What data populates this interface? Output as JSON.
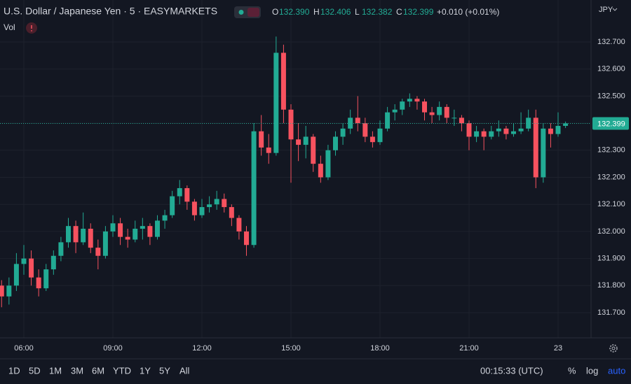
{
  "header": {
    "symbol": "U.S. Dollar / Japanese Yen · 5 · EASYMARKETS",
    "ohlc": [
      {
        "label": "O",
        "value": "132.390"
      },
      {
        "label": "H",
        "value": "132.406"
      },
      {
        "label": "L",
        "value": "132.382"
      },
      {
        "label": "C",
        "value": "132.399"
      }
    ],
    "change": "+0.010 (+0.01%)",
    "volume_label": "Vol",
    "currency": "JPY"
  },
  "chart_data": {
    "type": "candlestick",
    "up_color": "#22ab94",
    "down_color": "#f7525f",
    "grid": true,
    "last_price": 132.399,
    "xlim": [
      5.197,
      25.11
    ],
    "xticks": [
      {
        "value": 6,
        "label": "06:00"
      },
      {
        "value": 9,
        "label": "09:00"
      },
      {
        "value": 12,
        "label": "12:00"
      },
      {
        "value": 15,
        "label": "15:00"
      },
      {
        "value": 18,
        "label": "18:00"
      },
      {
        "value": 21,
        "label": "21:00"
      },
      {
        "value": 24,
        "label": "23"
      }
    ],
    "ylim": [
      131.607,
      132.855
    ],
    "yticks": [
      {
        "value": 131.7,
        "label": "131.700"
      },
      {
        "value": 131.8,
        "label": "131.800"
      },
      {
        "value": 131.9,
        "label": "131.900"
      },
      {
        "value": 132.0,
        "label": "132.000"
      },
      {
        "value": 132.1,
        "label": "132.100"
      },
      {
        "value": 132.2,
        "label": "132.200"
      },
      {
        "value": 132.3,
        "label": "132.300"
      },
      {
        "value": 132.4,
        "label": "132.400"
      },
      {
        "value": 132.5,
        "label": "132.500"
      },
      {
        "value": 132.6,
        "label": "132.600"
      },
      {
        "value": 132.7,
        "label": "132.700"
      }
    ],
    "x": [
      5.25,
      5.5,
      5.75,
      6,
      6.25,
      6.5,
      6.75,
      7,
      7.25,
      7.5,
      7.75,
      8,
      8.25,
      8.5,
      8.75,
      9,
      9.25,
      9.5,
      9.75,
      10,
      10.25,
      10.5,
      10.75,
      11,
      11.25,
      11.5,
      11.75,
      12,
      12.25,
      12.5,
      12.75,
      13,
      13.25,
      13.5,
      13.75,
      14,
      14.25,
      14.5,
      14.75,
      15,
      15.25,
      15.5,
      15.75,
      16,
      16.25,
      16.5,
      16.75,
      17,
      17.25,
      17.5,
      17.75,
      18,
      18.25,
      18.5,
      18.75,
      19,
      19.25,
      19.5,
      19.75,
      20,
      20.25,
      20.5,
      20.75,
      21,
      21.25,
      21.5,
      21.75,
      22,
      22.25,
      22.5,
      22.75,
      23,
      23.25,
      23.5,
      23.75,
      24,
      24.25
    ],
    "ohlc": [
      [
        131.8,
        131.82,
        131.72,
        131.76
      ],
      [
        131.76,
        131.83,
        131.73,
        131.8
      ],
      [
        131.8,
        131.92,
        131.78,
        131.88
      ],
      [
        131.88,
        131.95,
        131.84,
        131.9
      ],
      [
        131.9,
        131.93,
        131.8,
        131.83
      ],
      [
        131.83,
        131.86,
        131.76,
        131.79
      ],
      [
        131.79,
        131.88,
        131.78,
        131.86
      ],
      [
        131.86,
        131.93,
        131.84,
        131.91
      ],
      [
        131.91,
        131.98,
        131.89,
        131.96
      ],
      [
        131.96,
        132.05,
        131.94,
        132.02
      ],
      [
        132.02,
        132.04,
        131.92,
        131.96
      ],
      [
        131.96,
        132.07,
        131.95,
        132.01
      ],
      [
        132.01,
        132.03,
        131.92,
        131.94
      ],
      [
        131.94,
        131.97,
        131.86,
        131.91
      ],
      [
        131.91,
        132.02,
        131.9,
        132.0
      ],
      [
        132.0,
        132.06,
        131.98,
        132.03
      ],
      [
        132.03,
        132.05,
        131.95,
        131.98
      ],
      [
        131.98,
        132.01,
        131.94,
        131.97
      ],
      [
        131.97,
        132.04,
        131.96,
        132.01
      ],
      [
        132.01,
        132.05,
        131.97,
        132.02
      ],
      [
        132.02,
        132.03,
        131.95,
        131.98
      ],
      [
        131.98,
        132.06,
        131.97,
        132.04
      ],
      [
        132.04,
        132.08,
        132.01,
        132.06
      ],
      [
        132.06,
        132.15,
        132.05,
        132.13
      ],
      [
        132.13,
        132.19,
        132.1,
        132.16
      ],
      [
        132.16,
        132.17,
        132.08,
        132.11
      ],
      [
        132.11,
        132.12,
        132.04,
        132.06
      ],
      [
        132.06,
        132.12,
        132.05,
        132.09
      ],
      [
        132.09,
        132.13,
        132.07,
        132.1
      ],
      [
        132.1,
        132.15,
        132.08,
        132.12
      ],
      [
        132.12,
        132.14,
        132.07,
        132.09
      ],
      [
        132.09,
        132.1,
        132.02,
        132.05
      ],
      [
        132.05,
        132.06,
        131.97,
        132.0
      ],
      [
        132.0,
        132.02,
        131.91,
        131.95
      ],
      [
        131.95,
        132.4,
        131.94,
        132.37
      ],
      [
        132.37,
        132.43,
        132.28,
        132.31
      ],
      [
        132.31,
        132.36,
        132.25,
        132.29
      ],
      [
        132.29,
        132.72,
        132.28,
        132.66
      ],
      [
        132.66,
        132.69,
        132.4,
        132.45
      ],
      [
        132.45,
        132.47,
        132.18,
        132.34
      ],
      [
        132.34,
        132.4,
        132.26,
        132.32
      ],
      [
        132.32,
        132.39,
        132.27,
        132.35
      ],
      [
        132.35,
        132.36,
        132.22,
        132.25
      ],
      [
        132.25,
        132.28,
        132.18,
        132.2
      ],
      [
        132.2,
        132.32,
        132.19,
        132.3
      ],
      [
        132.3,
        132.37,
        132.28,
        132.35
      ],
      [
        132.35,
        132.4,
        132.32,
        132.38
      ],
      [
        132.38,
        132.45,
        132.36,
        132.42
      ],
      [
        132.42,
        132.5,
        132.37,
        132.4
      ],
      [
        132.4,
        132.42,
        132.33,
        132.35
      ],
      [
        132.35,
        132.37,
        132.31,
        132.33
      ],
      [
        132.33,
        132.41,
        132.32,
        132.38
      ],
      [
        132.38,
        132.46,
        132.37,
        132.44
      ],
      [
        132.44,
        132.47,
        132.41,
        132.45
      ],
      [
        132.45,
        132.49,
        132.43,
        132.48
      ],
      [
        132.48,
        132.51,
        132.46,
        132.49
      ],
      [
        132.49,
        132.5,
        132.45,
        132.48
      ],
      [
        132.48,
        132.49,
        132.41,
        132.44
      ],
      [
        132.44,
        132.46,
        132.4,
        132.43
      ],
      [
        132.43,
        132.48,
        132.41,
        132.46
      ],
      [
        132.46,
        132.47,
        132.4,
        132.42
      ],
      [
        132.42,
        132.45,
        132.39,
        132.42
      ],
      [
        132.42,
        132.43,
        132.37,
        132.4
      ],
      [
        132.4,
        132.41,
        132.3,
        132.35
      ],
      [
        132.35,
        132.39,
        132.33,
        132.37
      ],
      [
        132.37,
        132.38,
        132.3,
        132.35
      ],
      [
        132.35,
        132.39,
        132.34,
        132.37
      ],
      [
        132.37,
        132.41,
        132.35,
        132.38
      ],
      [
        132.38,
        132.39,
        132.34,
        132.36
      ],
      [
        132.36,
        132.4,
        132.35,
        132.37
      ],
      [
        132.37,
        132.44,
        132.36,
        132.38
      ],
      [
        132.38,
        132.45,
        132.37,
        132.42
      ],
      [
        132.42,
        132.45,
        132.16,
        132.2
      ],
      [
        132.2,
        132.4,
        132.18,
        132.38
      ],
      [
        132.38,
        132.4,
        132.31,
        132.36
      ],
      [
        132.36,
        132.44,
        132.35,
        132.39
      ],
      [
        132.39,
        132.406,
        132.382,
        132.399
      ]
    ]
  },
  "toolbar": {
    "ranges": [
      "1D",
      "5D",
      "1M",
      "3M",
      "6M",
      "YTD",
      "1Y",
      "5Y",
      "All"
    ],
    "clock": "00:15:33 (UTC)",
    "options": [
      "%",
      "log",
      "auto"
    ]
  }
}
